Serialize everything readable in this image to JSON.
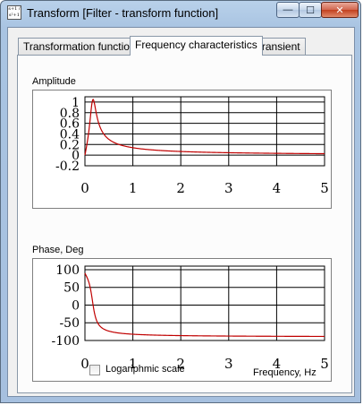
{
  "window": {
    "title": "Transform [Filter - transform function]",
    "icon_text": "s+1 / s²+1",
    "buttons": {
      "minimize_glyph": "—",
      "maximize_glyph": "☐",
      "close_glyph": "✕"
    }
  },
  "tabs": [
    {
      "label": "Transformation function",
      "active": false
    },
    {
      "label": "Frequency characteristics",
      "active": true
    },
    {
      "label": "Transient",
      "active": false
    }
  ],
  "amplitude_plot": {
    "label": "Amplitude",
    "y_ticks": [
      "1",
      "0.8",
      "0.6",
      "0.4",
      "0.2",
      "0",
      "-0.2"
    ],
    "x_ticks": [
      "0",
      "1",
      "2",
      "3",
      "4",
      "5"
    ]
  },
  "phase_plot": {
    "label": "Phase, Deg",
    "y_ticks": [
      "100",
      "50",
      "0",
      "-50",
      "-100"
    ],
    "x_ticks": [
      "0",
      "1",
      "2",
      "3",
      "4",
      "5"
    ]
  },
  "footer": {
    "log_scale_label": "Logariphmic scale",
    "log_scale_checked": false,
    "xlabel": "Frequency, Hz"
  },
  "colors": {
    "curve": "#c00000"
  }
}
